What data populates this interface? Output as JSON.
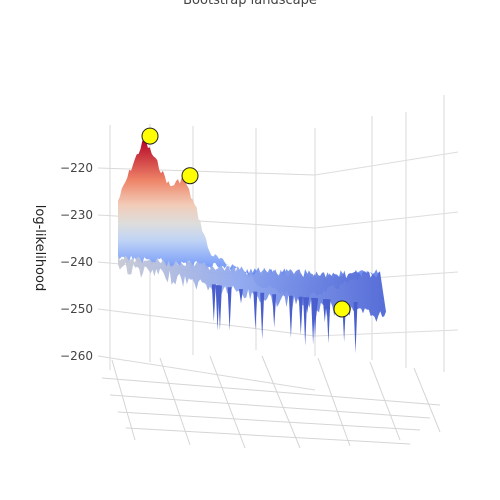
{
  "chart_data": {
    "type": "surface3d",
    "title": "Bootstrap landscape",
    "zlabel": "log-likelihood",
    "zticks": [
      "−220",
      "−230",
      "−240",
      "−250",
      "−260"
    ],
    "zlim": [
      -262,
      -211
    ],
    "colorscale": [
      "#3b4cc0",
      "#7b9ff9",
      "#c0d4f5",
      "#dddddd",
      "#f2cbb7",
      "#ee8468",
      "#b40426"
    ],
    "highlight_color": "#ffff00",
    "ridge_profile": {
      "x": [
        0.0,
        0.05,
        0.1,
        0.15,
        0.2,
        0.25,
        0.3,
        0.35,
        0.4,
        0.45,
        0.5,
        0.55,
        0.6,
        0.65,
        0.7,
        0.75,
        0.8,
        0.85,
        0.9,
        0.95,
        1.0
      ],
      "z": [
        -227,
        -220,
        -214,
        -219,
        -224,
        -222,
        -229,
        -238,
        -240,
        -241,
        -243,
        -245,
        -246,
        -247,
        -248,
        -247,
        -246,
        -245,
        -244,
        -243,
        -242
      ]
    },
    "highlighted_points": [
      {
        "label": "peak-1",
        "z": -213
      },
      {
        "label": "peak-2",
        "z": -221
      },
      {
        "label": "minimum",
        "z": -250
      }
    ]
  }
}
